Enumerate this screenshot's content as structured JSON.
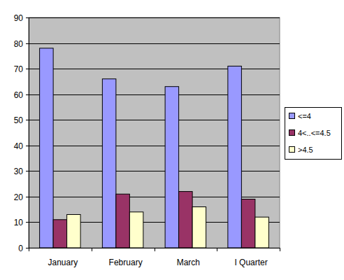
{
  "chart_data": {
    "type": "bar",
    "categories": [
      "January",
      "February",
      "March",
      "I Quarter"
    ],
    "series": [
      {
        "name": "<=4",
        "color": "#9999ff",
        "values": [
          78,
          66,
          63,
          71
        ]
      },
      {
        "name": "4<..<=4.5",
        "color": "#993366",
        "values": [
          11,
          21,
          22,
          19
        ]
      },
      {
        "name": ">4.5",
        "color": "#ffffcc",
        "values": [
          13,
          14,
          16,
          12
        ]
      }
    ],
    "ylim": [
      0,
      90
    ],
    "yticks": [
      0,
      10,
      20,
      30,
      40,
      50,
      60,
      70,
      80,
      90
    ],
    "grid": true,
    "legend": "right"
  }
}
